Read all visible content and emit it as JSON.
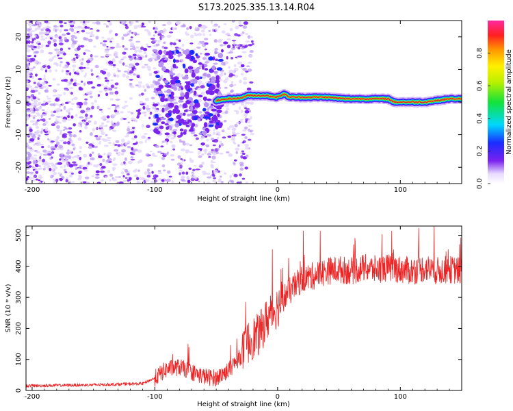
{
  "figure_title": "S173.2025.335.13.14.R04",
  "colors": {
    "snr_line": "#ee2222",
    "spectrogram_ridge": "#dd2b2b",
    "speckle": "#7a22ee"
  },
  "chart_data": [
    {
      "type": "heatmap",
      "title": "",
      "xlabel": "Height of straight line (km)",
      "ylabel": "Frequency (Hz)",
      "xlim": [
        -205,
        150
      ],
      "ylim": [
        -25,
        25
      ],
      "xticks": [
        -200,
        -100,
        0,
        100
      ],
      "xtick_labels": [
        "-200",
        "-100",
        "0",
        "100"
      ],
      "yticks": [
        -20,
        -10,
        0,
        10,
        20
      ],
      "ytick_labels": [
        "-20",
        "-10",
        "0",
        "10",
        "20"
      ],
      "colorbar": {
        "label": "Normalized spectral amplitude",
        "range": [
          0,
          1
        ],
        "ticks": [
          0,
          0.2,
          0.4,
          0.6,
          0.8
        ],
        "tick_labels": [
          "0.0",
          "0.2",
          "0.4",
          "0.6",
          "0.8"
        ]
      },
      "ridge": {
        "description": "dominant frequency trace",
        "x": [
          -50,
          -40,
          -30,
          -25,
          -20,
          -10,
          0,
          5,
          10,
          20,
          40,
          55,
          70,
          90,
          95,
          100,
          105,
          110,
          120,
          130,
          140,
          150
        ],
        "freq_hz": [
          0.5,
          1.0,
          1.2,
          2.0,
          2.0,
          2.0,
          1.5,
          2.5,
          1.5,
          1.5,
          1.5,
          1.0,
          1.0,
          1.0,
          0.0,
          0.0,
          0.0,
          0.0,
          0.0,
          0.5,
          1.0,
          1.0
        ]
      },
      "noise_region": {
        "x_range": [
          -205,
          -40
        ],
        "freq_range": [
          -25,
          25
        ],
        "description": "broadband low-amplitude speckle"
      }
    },
    {
      "type": "line",
      "title": "",
      "xlabel": "Height of straight line (km)",
      "ylabel": "SNR (10 * v/v)",
      "xlim": [
        -205,
        150
      ],
      "ylim": [
        0,
        530
      ],
      "xticks": [
        -200,
        -100,
        0,
        100
      ],
      "xtick_labels": [
        "-200",
        "-100",
        "0",
        "100"
      ],
      "yticks": [
        0,
        100,
        200,
        300,
        400,
        500
      ],
      "ytick_labels": [
        "0",
        "100",
        "200",
        "300",
        "400",
        "500"
      ],
      "series": [
        {
          "name": "SNR",
          "x": [
            -205,
            -150,
            -110,
            -100,
            -90,
            -80,
            -70,
            -60,
            -50,
            -40,
            -30,
            -25,
            -20,
            -15,
            -10,
            -5,
            0,
            5,
            10,
            15,
            20,
            30,
            40,
            50,
            60,
            70,
            80,
            90,
            100,
            110,
            120,
            130,
            140,
            150
          ],
          "y": [
            15,
            18,
            22,
            40,
            70,
            75,
            60,
            45,
            40,
            65,
            110,
            150,
            170,
            180,
            220,
            250,
            270,
            300,
            320,
            340,
            360,
            370,
            385,
            390,
            385,
            395,
            390,
            395,
            390,
            385,
            395,
            385,
            390,
            385
          ]
        }
      ]
    }
  ]
}
